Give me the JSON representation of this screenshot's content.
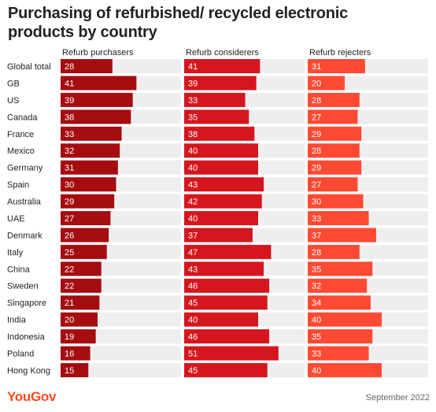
{
  "title": "Purchasing of refurbished/ recycled electronic products by country",
  "brand": "YouGov",
  "date_note": "September 2022",
  "chart_data": {
    "type": "bar",
    "orientation": "horizontal",
    "layout": "small-multiples",
    "categories": [
      "Global total",
      "GB",
      "US",
      "Canada",
      "France",
      "Mexico",
      "Germany",
      "Spain",
      "Australia",
      "UAE",
      "Denmark",
      "Italy",
      "China",
      "Sweden",
      "Singapore",
      "India",
      "Indonesia",
      "Poland",
      "Hong Kong"
    ],
    "series": [
      {
        "name": "Refurb purchasers",
        "color": "#a50d10",
        "values": [
          28,
          41,
          39,
          38,
          33,
          32,
          31,
          30,
          29,
          27,
          26,
          25,
          22,
          22,
          21,
          20,
          19,
          16,
          15
        ]
      },
      {
        "name": "Refurb considerers",
        "color": "#d5161e",
        "values": [
          41,
          39,
          33,
          35,
          38,
          40,
          40,
          43,
          42,
          40,
          37,
          47,
          43,
          46,
          45,
          40,
          46,
          51,
          45
        ]
      },
      {
        "name": "Refurb rejecters",
        "color": "#ff4a33",
        "values": [
          31,
          20,
          28,
          27,
          29,
          28,
          29,
          27,
          30,
          33,
          37,
          28,
          35,
          32,
          34,
          40,
          35,
          33,
          40
        ]
      }
    ],
    "scale_max": 51,
    "data_labels": true,
    "background_track": true
  }
}
